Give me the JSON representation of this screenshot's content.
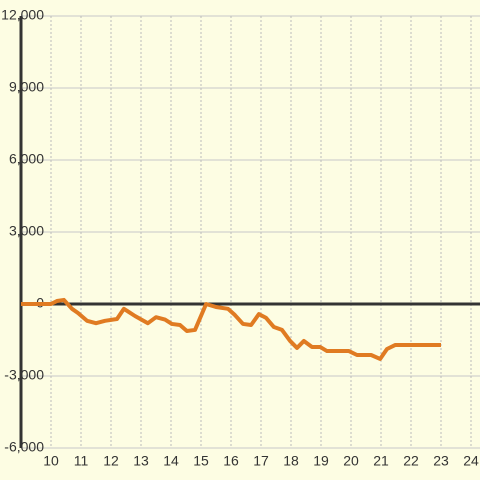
{
  "chart_data": {
    "type": "line",
    "x": [
      9,
      10,
      10.2,
      10.43,
      10.7,
      10.9,
      11.2,
      11.5,
      11.8,
      12.2,
      12.43,
      12.8,
      13.23,
      13.5,
      13.8,
      14.03,
      14.3,
      14.53,
      14.8,
      15.17,
      15.5,
      15.9,
      16.13,
      16.4,
      16.67,
      16.93,
      17.17,
      17.43,
      17.7,
      17.97,
      18.2,
      18.43,
      18.7,
      18.97,
      19.2,
      19.93,
      20.2,
      20.67,
      20.97,
      21.2,
      21.47,
      23
    ],
    "series": [
      {
        "color": "#e07b22",
        "values": [
          0,
          0,
          125,
          170,
          -200,
          -375,
          -700,
          -800,
          -700,
          -625,
          -200,
          -500,
          -800,
          -550,
          -650,
          -830,
          -875,
          -1125,
          -1080,
          0,
          -125,
          -200,
          -460,
          -830,
          -875,
          -420,
          -580,
          -960,
          -1080,
          -1540,
          -1830,
          -1540,
          -1790,
          -1790,
          -1960,
          -1960,
          -2125,
          -2125,
          -2290,
          -1875,
          -1710,
          -1710
        ]
      }
    ],
    "xlim": [
      9,
      24.3
    ],
    "xticks": [
      10,
      11,
      12,
      13,
      14,
      15,
      16,
      17,
      18,
      19,
      20,
      21,
      22,
      23,
      24
    ],
    "ylim": [
      -6000,
      12000
    ],
    "yticks": [
      {
        "value": -6000,
        "label": "-6,000"
      },
      {
        "value": -3000,
        "label": "-3,000"
      },
      0,
      {
        "value": 3000,
        "label": "3,000"
      },
      {
        "value": 6000,
        "label": "6,000"
      },
      {
        "value": 9000,
        "label": "9,000"
      },
      {
        "value": 12000,
        "label": "12,000"
      }
    ],
    "grid": true
  }
}
